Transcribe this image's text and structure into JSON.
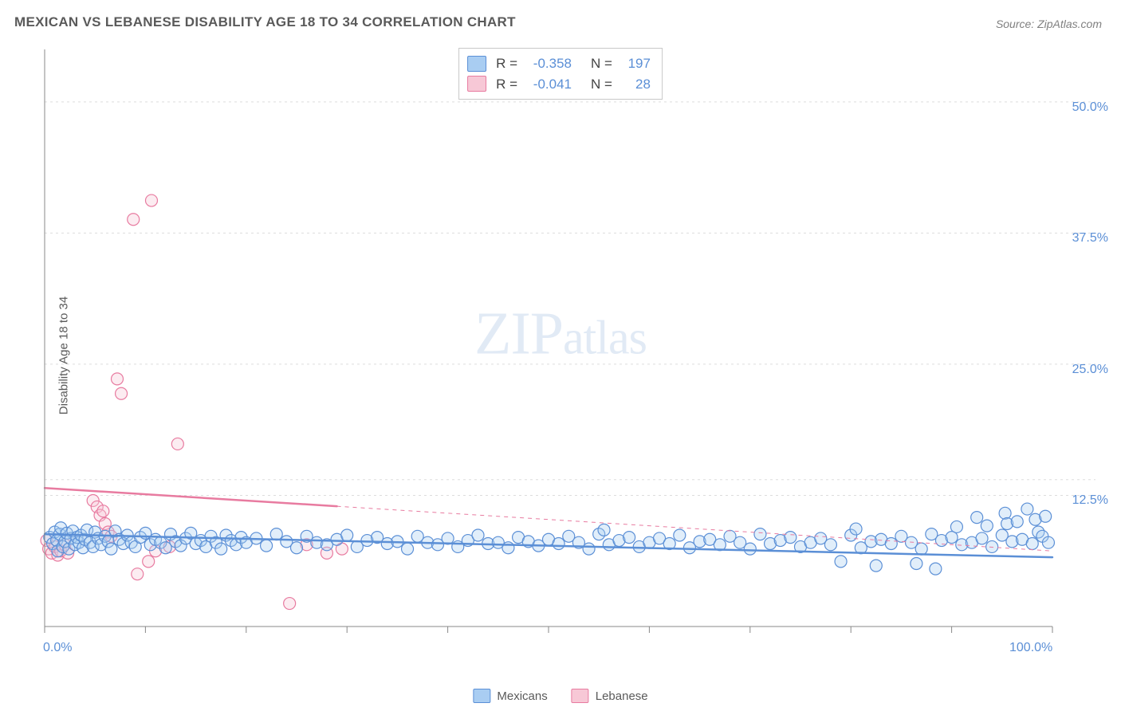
{
  "header": {
    "title": "MEXICAN VS LEBANESE DISABILITY AGE 18 TO 34 CORRELATION CHART",
    "source_prefix": "Source: ",
    "source_name": "ZipAtlas.com"
  },
  "watermark": {
    "part1": "ZIP",
    "part2": "atlas"
  },
  "chart": {
    "type": "scatter",
    "ylabel": "Disability Age 18 to 34",
    "background_color": "#ffffff",
    "grid_color": "#dddddd",
    "axis_color": "#888888",
    "tick_color": "#888888",
    "tick_label_color": "#5b8fd6",
    "title_color": "#5a5a5a",
    "title_fontsize": 17,
    "label_fontsize": 15,
    "tick_fontsize": 16,
    "xlim": [
      0,
      100
    ],
    "ylim": [
      0,
      55
    ],
    "xtick_step": 10,
    "x_labeled_ticks": [
      0,
      100
    ],
    "x_tick_positions": [
      0,
      10,
      20,
      30,
      40,
      50,
      60,
      70,
      80,
      90,
      100
    ],
    "yticks": [
      12.5,
      25.0,
      37.5,
      50.0
    ],
    "y_minor_gridlines_at": [
      14.0
    ],
    "marker_radius": 7.5,
    "marker_stroke_width": 1.2,
    "marker_fill_opacity": 0.35,
    "trend_line_width_solid": 2.5,
    "trend_line_width_dash": 1.0,
    "trend_dash_pattern": "5,5",
    "series": {
      "mexicans": {
        "label": "Mexicans",
        "fill": "#a9cdf2",
        "stroke": "#5b8fd6",
        "swatch_fill": "#a9cdf2",
        "swatch_border": "#5b8fd6",
        "R": "-0.358",
        "N": "197",
        "trend": {
          "x0": 0,
          "y0": 8.8,
          "x1": 100,
          "y1": 6.6,
          "solid_until_x": 100
        },
        "points": [
          [
            0.5,
            8.5
          ],
          [
            0.8,
            7.9
          ],
          [
            1.0,
            9.0
          ],
          [
            1.2,
            8.2
          ],
          [
            1.3,
            7.2
          ],
          [
            1.5,
            8.8
          ],
          [
            1.6,
            9.4
          ],
          [
            1.8,
            7.6
          ],
          [
            2.0,
            8.1
          ],
          [
            2.2,
            8.9
          ],
          [
            2.4,
            7.4
          ],
          [
            2.6,
            8.4
          ],
          [
            2.8,
            9.1
          ],
          [
            3.0,
            7.8
          ],
          [
            3.2,
            8.5
          ],
          [
            3.4,
            8.0
          ],
          [
            3.6,
            8.7
          ],
          [
            3.8,
            7.5
          ],
          [
            4.0,
            8.3
          ],
          [
            4.2,
            9.2
          ],
          [
            4.5,
            8.0
          ],
          [
            4.8,
            7.6
          ],
          [
            5.0,
            9.0
          ],
          [
            5.3,
            8.4
          ],
          [
            5.6,
            7.8
          ],
          [
            6.0,
            8.6
          ],
          [
            6.3,
            8.1
          ],
          [
            6.6,
            7.4
          ],
          [
            7.0,
            9.1
          ],
          [
            7.4,
            8.3
          ],
          [
            7.8,
            7.9
          ],
          [
            8.2,
            8.7
          ],
          [
            8.6,
            8.0
          ],
          [
            9.0,
            7.6
          ],
          [
            9.5,
            8.5
          ],
          [
            10,
            8.9
          ],
          [
            10.5,
            7.8
          ],
          [
            11,
            8.3
          ],
          [
            11.5,
            8.0
          ],
          [
            12,
            7.5
          ],
          [
            12.5,
            8.8
          ],
          [
            13,
            8.1
          ],
          [
            13.5,
            7.7
          ],
          [
            14,
            8.4
          ],
          [
            14.5,
            8.9
          ],
          [
            15,
            7.9
          ],
          [
            15.5,
            8.2
          ],
          [
            16,
            7.6
          ],
          [
            16.5,
            8.6
          ],
          [
            17,
            8.0
          ],
          [
            17.5,
            7.4
          ],
          [
            18,
            8.7
          ],
          [
            18.5,
            8.2
          ],
          [
            19,
            7.8
          ],
          [
            19.5,
            8.5
          ],
          [
            20,
            8.0
          ],
          [
            21,
            8.4
          ],
          [
            22,
            7.7
          ],
          [
            23,
            8.8
          ],
          [
            24,
            8.1
          ],
          [
            25,
            7.5
          ],
          [
            26,
            8.6
          ],
          [
            27,
            8.0
          ],
          [
            28,
            7.8
          ],
          [
            29,
            8.3
          ],
          [
            30,
            8.7
          ],
          [
            31,
            7.6
          ],
          [
            32,
            8.2
          ],
          [
            33,
            8.5
          ],
          [
            34,
            7.9
          ],
          [
            35,
            8.1
          ],
          [
            36,
            7.4
          ],
          [
            37,
            8.6
          ],
          [
            38,
            8.0
          ],
          [
            39,
            7.8
          ],
          [
            40,
            8.4
          ],
          [
            41,
            7.6
          ],
          [
            42,
            8.2
          ],
          [
            43,
            8.7
          ],
          [
            44,
            7.9
          ],
          [
            45,
            8.0
          ],
          [
            46,
            7.5
          ],
          [
            47,
            8.5
          ],
          [
            48,
            8.1
          ],
          [
            49,
            7.7
          ],
          [
            50,
            8.3
          ],
          [
            51,
            7.9
          ],
          [
            52,
            8.6
          ],
          [
            53,
            8.0
          ],
          [
            54,
            7.4
          ],
          [
            55,
            8.8
          ],
          [
            55.5,
            9.2
          ],
          [
            56,
            7.8
          ],
          [
            57,
            8.2
          ],
          [
            58,
            8.5
          ],
          [
            59,
            7.6
          ],
          [
            60,
            8.0
          ],
          [
            61,
            8.4
          ],
          [
            62,
            7.9
          ],
          [
            63,
            8.7
          ],
          [
            64,
            7.5
          ],
          [
            65,
            8.1
          ],
          [
            66,
            8.3
          ],
          [
            67,
            7.8
          ],
          [
            68,
            8.6
          ],
          [
            69,
            8.0
          ],
          [
            70,
            7.4
          ],
          [
            71,
            8.8
          ],
          [
            72,
            7.9
          ],
          [
            73,
            8.2
          ],
          [
            74,
            8.5
          ],
          [
            75,
            7.6
          ],
          [
            76,
            8.0
          ],
          [
            77,
            8.4
          ],
          [
            78,
            7.8
          ],
          [
            79,
            6.2
          ],
          [
            80,
            8.7
          ],
          [
            80.5,
            9.3
          ],
          [
            81,
            7.5
          ],
          [
            82,
            8.1
          ],
          [
            82.5,
            5.8
          ],
          [
            83,
            8.3
          ],
          [
            84,
            7.9
          ],
          [
            85,
            8.6
          ],
          [
            86,
            8.0
          ],
          [
            86.5,
            6.0
          ],
          [
            87,
            7.4
          ],
          [
            88,
            8.8
          ],
          [
            88.4,
            5.5
          ],
          [
            89,
            8.2
          ],
          [
            90,
            8.5
          ],
          [
            90.5,
            9.5
          ],
          [
            91,
            7.8
          ],
          [
            92,
            8.0
          ],
          [
            92.5,
            10.4
          ],
          [
            93,
            8.4
          ],
          [
            93.5,
            9.6
          ],
          [
            94,
            7.6
          ],
          [
            95,
            8.7
          ],
          [
            95.3,
            10.8
          ],
          [
            95.5,
            9.8
          ],
          [
            96,
            8.1
          ],
          [
            96.5,
            10.0
          ],
          [
            97,
            8.3
          ],
          [
            97.5,
            11.2
          ],
          [
            98,
            7.9
          ],
          [
            98.3,
            10.2
          ],
          [
            98.6,
            9.0
          ],
          [
            99,
            8.6
          ],
          [
            99.3,
            10.5
          ],
          [
            99.6,
            8.0
          ]
        ]
      },
      "lebanese": {
        "label": "Lebanese",
        "fill": "#f7c8d6",
        "stroke": "#e87ba0",
        "swatch_fill": "#f7c8d6",
        "swatch_border": "#e87ba0",
        "R": "-0.041",
        "N": "28",
        "trend": {
          "x0": 0,
          "y0": 13.2,
          "x1": 100,
          "y1": 7.2,
          "solid_until_x": 29
        },
        "points": [
          [
            0.2,
            8.2
          ],
          [
            0.4,
            7.4
          ],
          [
            0.7,
            7.0
          ],
          [
            1.0,
            7.6
          ],
          [
            1.3,
            6.8
          ],
          [
            1.6,
            7.2
          ],
          [
            2.0,
            7.8
          ],
          [
            2.3,
            7.0
          ],
          [
            4.8,
            12.0
          ],
          [
            5.2,
            11.4
          ],
          [
            5.5,
            10.6
          ],
          [
            5.8,
            11.0
          ],
          [
            6.0,
            9.8
          ],
          [
            6.3,
            9.0
          ],
          [
            6.6,
            8.6
          ],
          [
            7.2,
            23.6
          ],
          [
            7.6,
            22.2
          ],
          [
            8.8,
            38.8
          ],
          [
            9.2,
            5.0
          ],
          [
            10.6,
            40.6
          ],
          [
            10.3,
            6.2
          ],
          [
            13.2,
            17.4
          ],
          [
            11.0,
            7.2
          ],
          [
            12.4,
            7.6
          ],
          [
            24.3,
            2.2
          ],
          [
            26.0,
            7.8
          ],
          [
            28.0,
            7.0
          ],
          [
            29.5,
            7.4
          ]
        ]
      }
    },
    "legend_top": {
      "border_color": "#c8c8c8",
      "R_label": "R =",
      "N_label": "N ="
    },
    "legend_bottom": {
      "items": [
        "mexicans",
        "lebanese"
      ]
    }
  }
}
